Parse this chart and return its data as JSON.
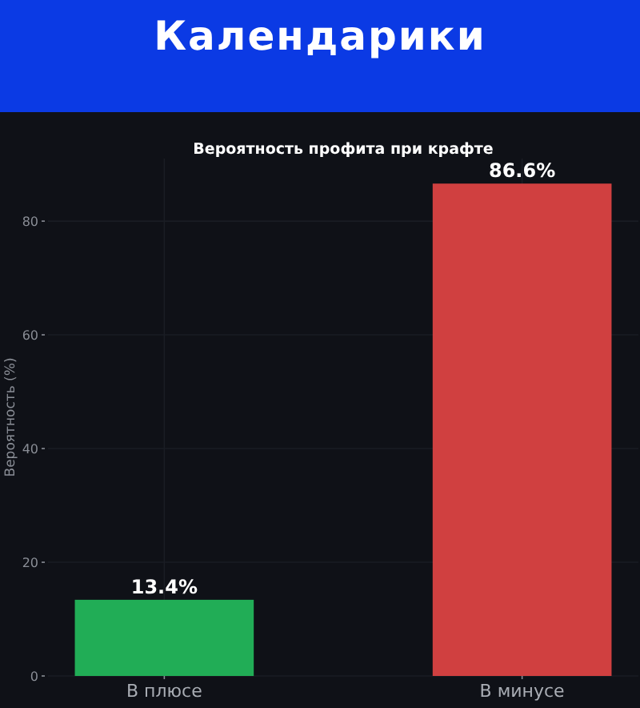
{
  "chart_data": {
    "type": "bar",
    "title": "Календарики",
    "subtitle": "Вероятность профита при крафте",
    "ylabel": "Вероятность (%)",
    "categories": [
      "В плюсе",
      "В минусе"
    ],
    "values": [
      13.4,
      86.6
    ],
    "colors": [
      "#21ad56",
      "#d04040"
    ],
    "value_labels": [
      "13.4%",
      "86.6%"
    ],
    "ylim": [
      0,
      91
    ],
    "yticks": [
      0,
      20,
      40,
      60,
      80
    ],
    "grid": true
  }
}
